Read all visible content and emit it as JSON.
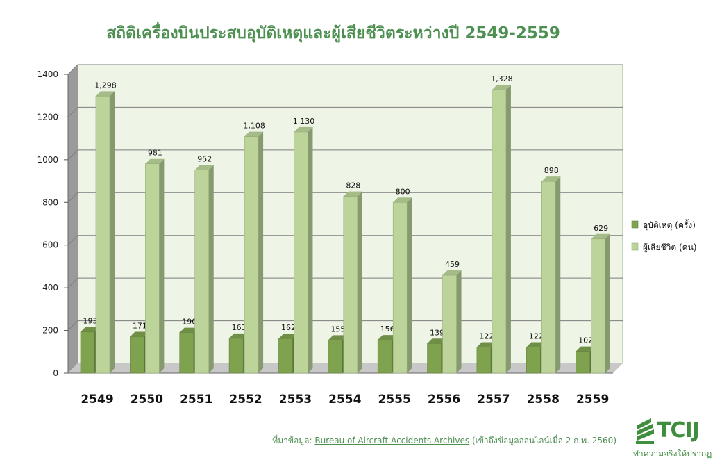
{
  "chart_data": {
    "type": "bar",
    "title": "สถิติเครื่องบินประสบอุบัติเหตุและผู้เสียชีวิตระหว่างปี  2549-2559",
    "categories": [
      "2549",
      "2550",
      "2551",
      "2552",
      "2553",
      "2554",
      "2555",
      "2556",
      "2557",
      "2558",
      "2559"
    ],
    "series": [
      {
        "name": "อุบัติเหตุ (ครั้ง)",
        "color": "#7fa24f",
        "values": [
          193,
          171,
          190,
          163,
          162,
          155,
          156,
          139,
          122,
          122,
          102
        ],
        "labels": [
          "193",
          "171",
          "190",
          "163",
          "162",
          "155",
          "156",
          "139",
          "122",
          "122",
          "102"
        ]
      },
      {
        "name": "ผู้เสียชีวิต (คน)",
        "color": "#bcd49a",
        "values": [
          1298,
          981,
          952,
          1108,
          1130,
          828,
          800,
          459,
          1328,
          898,
          629
        ],
        "labels": [
          "1,298",
          "981",
          "952",
          "1,108",
          "1,130",
          "828",
          "800",
          "459",
          "1,328",
          "898",
          "629"
        ]
      }
    ],
    "ylim": [
      0,
      1400
    ],
    "yticks": [
      0,
      200,
      400,
      600,
      800,
      1000,
      1200,
      1400
    ],
    "grid": true,
    "legend": "right",
    "style": "3d-bar"
  },
  "source": {
    "prefix": "ที่มาข้อมูล: ",
    "link_text": "Bureau of Aircraft Accidents Archives",
    "suffix": " (เข้าถึงข้อมูลออนไลน์เมื่อ 2 ก.พ. 2560)"
  },
  "logo": {
    "name": "TCIJ",
    "tagline": "ทำความจริงให้ปรากฏ",
    "color": "#3e8e3e"
  }
}
